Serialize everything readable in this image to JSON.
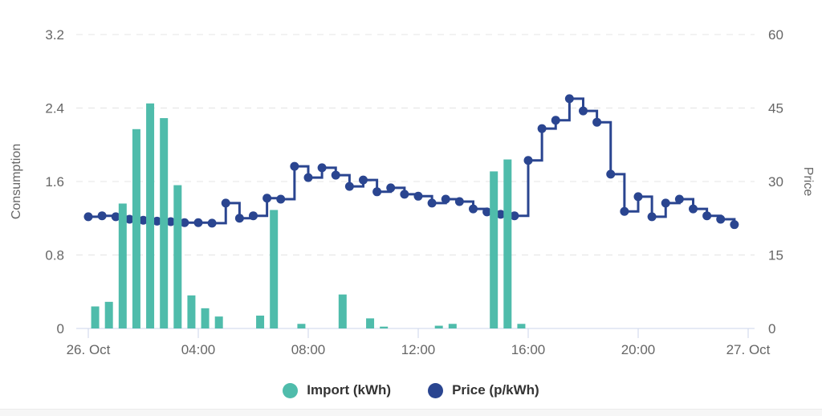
{
  "page": {
    "background": "#ffffff"
  },
  "chart_data": {
    "type": "combo",
    "title": "",
    "interval_minutes": 30,
    "x_times": [
      "00:00",
      "00:30",
      "01:00",
      "01:30",
      "02:00",
      "02:30",
      "03:00",
      "03:30",
      "04:00",
      "04:30",
      "05:00",
      "05:30",
      "06:00",
      "06:30",
      "07:00",
      "07:30",
      "08:00",
      "08:30",
      "09:00",
      "09:30",
      "10:00",
      "10:30",
      "11:00",
      "11:30",
      "12:00",
      "12:30",
      "13:00",
      "13:30",
      "14:00",
      "14:30",
      "15:00",
      "15:30",
      "16:00",
      "16:30",
      "17:00",
      "17:30",
      "18:00",
      "18:30",
      "19:00",
      "19:30",
      "20:00",
      "20:30",
      "21:00",
      "21:30",
      "22:00",
      "22:30",
      "23:00",
      "23:30"
    ],
    "x_axis": {
      "ticks": [
        {
          "label": "26. Oct",
          "hour": 0
        },
        {
          "label": "04:00",
          "hour": 4
        },
        {
          "label": "08:00",
          "hour": 8
        },
        {
          "label": "12:00",
          "hour": 12
        },
        {
          "label": "16:00",
          "hour": 16
        },
        {
          "label": "20:00",
          "hour": 20
        },
        {
          "label": "27. Oct",
          "hour": 24
        }
      ]
    },
    "y_axis_left": {
      "title": "Consumption",
      "min": 0,
      "max": 3.2,
      "tick_values": [
        0,
        0.8,
        1.6,
        2.4,
        3.2
      ],
      "tick_labels": [
        "0",
        "0.8",
        "1.6",
        "2.4",
        "3.2"
      ]
    },
    "y_axis_right": {
      "title": "Price",
      "min": 0,
      "max": 60,
      "tick_values": [
        0,
        15,
        30,
        45,
        60
      ],
      "tick_labels": [
        "0",
        "15",
        "30",
        "45",
        "60"
      ]
    },
    "grid": {
      "horizontal": true,
      "style": "dashed"
    },
    "legend_position": "bottom",
    "series": [
      {
        "name": "Import (kWh)",
        "type": "bar",
        "axis": "left",
        "color": "#4fbcab",
        "values": [
          0.24,
          0.29,
          1.36,
          2.17,
          2.45,
          2.29,
          1.56,
          0.36,
          0.22,
          0.13,
          0,
          0,
          0.14,
          1.29,
          0,
          0.05,
          0,
          0,
          0.37,
          0,
          0.11,
          0.02,
          0,
          0,
          0,
          0.03,
          0.05,
          0,
          0,
          1.71,
          1.84,
          0.05,
          0,
          0,
          0,
          0,
          0,
          0,
          0,
          0,
          0,
          0,
          0,
          0,
          0,
          0,
          0,
          0
        ]
      },
      {
        "name": "Price (p/kWh)",
        "type": "step-line",
        "axis": "right",
        "color": "#2a4590",
        "values": [
          22.8,
          23.0,
          22.8,
          22.3,
          22.1,
          21.9,
          21.8,
          21.6,
          21.6,
          21.5,
          25.6,
          22.5,
          23.0,
          26.6,
          26.4,
          33.1,
          30.8,
          32.8,
          31.3,
          29.0,
          30.3,
          27.9,
          28.7,
          27.4,
          27.0,
          25.6,
          26.4,
          25.9,
          24.4,
          23.8,
          23.3,
          23.0,
          34.3,
          40.8,
          42.5,
          46.9,
          44.4,
          42.1,
          31.5,
          23.9,
          26.9,
          22.8,
          25.6,
          26.4,
          24.4,
          23.0,
          22.3,
          21.2
        ]
      }
    ]
  },
  "colors": {
    "axis_text": "#666666",
    "legend_text": "#333333",
    "axis_line": "#ccd6eb",
    "gridline": "#e4e4e4",
    "bottom_strip": "#f6f6f6"
  }
}
